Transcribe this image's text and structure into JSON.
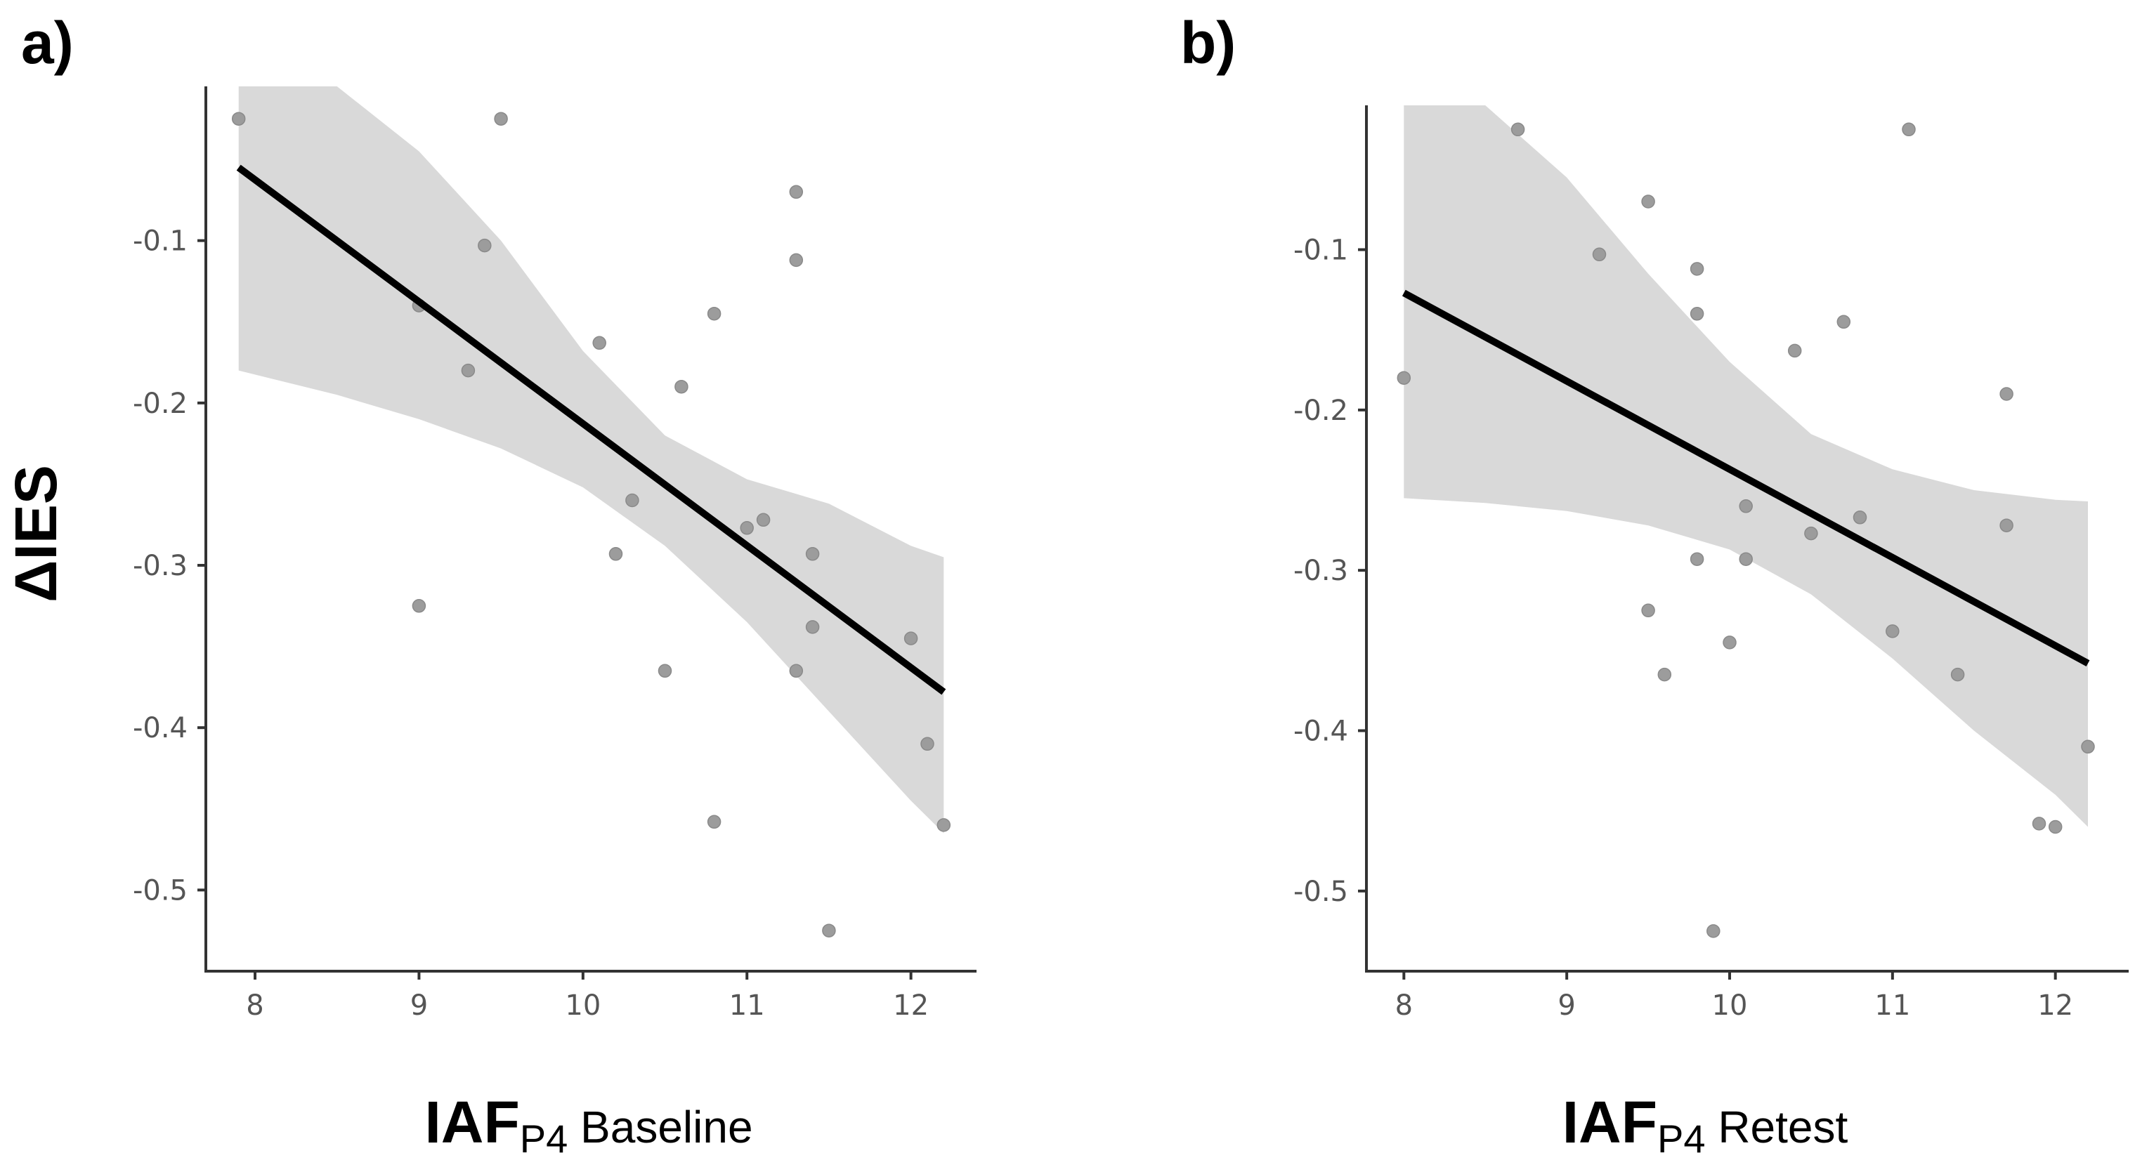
{
  "figure": {
    "ylabel": "ΔIES"
  },
  "chart_data": [
    {
      "type": "scatter",
      "panel_label": "a)",
      "xlabel": {
        "main": "IAF",
        "subscript": "P4",
        "rest": " Baseline"
      },
      "ylabel": "ΔIES",
      "xlim": [
        7.7,
        12.4
      ],
      "ylim": [
        -0.55,
        -0.005
      ],
      "xticks": [
        8,
        9,
        10,
        11,
        12
      ],
      "yticks": [
        -0.1,
        -0.2,
        -0.3,
        -0.4,
        -0.5
      ],
      "xtick_labels": [
        "8",
        "9",
        "10",
        "11",
        "12"
      ],
      "ytick_labels": [
        "-0.1",
        "-0.2",
        -0.3,
        "-0.4",
        "-0.5"
      ],
      "points": [
        {
          "x": 7.9,
          "y": -0.025
        },
        {
          "x": 9.0,
          "y": -0.14
        },
        {
          "x": 9.0,
          "y": -0.325
        },
        {
          "x": 9.3,
          "y": -0.18
        },
        {
          "x": 9.4,
          "y": -0.103
        },
        {
          "x": 9.5,
          "y": -0.025
        },
        {
          "x": 10.1,
          "y": -0.163
        },
        {
          "x": 10.2,
          "y": -0.293
        },
        {
          "x": 10.3,
          "y": -0.26
        },
        {
          "x": 10.5,
          "y": -0.365
        },
        {
          "x": 10.6,
          "y": -0.19
        },
        {
          "x": 10.8,
          "y": -0.145
        },
        {
          "x": 10.8,
          "y": -0.458
        },
        {
          "x": 11.0,
          "y": -0.277
        },
        {
          "x": 11.1,
          "y": -0.272
        },
        {
          "x": 11.3,
          "y": -0.07
        },
        {
          "x": 11.3,
          "y": -0.112
        },
        {
          "x": 11.3,
          "y": -0.365
        },
        {
          "x": 11.4,
          "y": -0.293
        },
        {
          "x": 11.4,
          "y": -0.338
        },
        {
          "x": 11.5,
          "y": -0.525
        },
        {
          "x": 12.0,
          "y": -0.345
        },
        {
          "x": 12.1,
          "y": -0.41
        },
        {
          "x": 12.2,
          "y": -0.46
        }
      ],
      "fit_line": [
        {
          "x": 7.9,
          "y": -0.055
        },
        {
          "x": 12.2,
          "y": -0.378
        }
      ],
      "confidence_band": {
        "x": [
          7.9,
          8.5,
          9.0,
          9.5,
          10.0,
          10.5,
          11.0,
          11.5,
          12.0,
          12.2
        ],
        "upper": [
          -0.005,
          -0.005,
          -0.045,
          -0.1,
          -0.168,
          -0.22,
          -0.247,
          -0.262,
          -0.288,
          -0.295
        ],
        "lower": [
          -0.18,
          -0.195,
          -0.21,
          -0.228,
          -0.252,
          -0.288,
          -0.335,
          -0.39,
          -0.445,
          -0.465
        ]
      }
    },
    {
      "type": "scatter",
      "panel_label": "b)",
      "xlabel": {
        "main": "IAF",
        "subscript": "P4",
        "rest": " Retest"
      },
      "ylabel": "",
      "xlim": [
        7.77,
        12.45
      ],
      "ylim": [
        -0.55,
        -0.01
      ],
      "xticks": [
        8,
        9,
        10,
        11,
        12
      ],
      "yticks": [
        -0.1,
        -0.2,
        -0.3,
        -0.4,
        -0.5
      ],
      "xtick_labels": [
        "8",
        "9",
        "10",
        "11",
        "12"
      ],
      "ytick_labels": [
        "-0.1",
        "-0.2",
        "-0.3",
        "-0.4",
        "-0.5"
      ],
      "points": [
        {
          "x": 8.0,
          "y": -0.18
        },
        {
          "x": 8.7,
          "y": -0.025
        },
        {
          "x": 9.2,
          "y": -0.103
        },
        {
          "x": 9.5,
          "y": -0.07
        },
        {
          "x": 9.5,
          "y": -0.325
        },
        {
          "x": 9.6,
          "y": -0.365
        },
        {
          "x": 9.8,
          "y": -0.112
        },
        {
          "x": 9.8,
          "y": -0.14
        },
        {
          "x": 9.8,
          "y": -0.293
        },
        {
          "x": 9.9,
          "y": -0.525
        },
        {
          "x": 10.0,
          "y": -0.345
        },
        {
          "x": 10.1,
          "y": -0.26
        },
        {
          "x": 10.1,
          "y": -0.293
        },
        {
          "x": 10.4,
          "y": -0.163
        },
        {
          "x": 10.5,
          "y": -0.277
        },
        {
          "x": 10.7,
          "y": -0.145
        },
        {
          "x": 10.8,
          "y": -0.267
        },
        {
          "x": 11.0,
          "y": -0.338
        },
        {
          "x": 11.1,
          "y": -0.025
        },
        {
          "x": 11.4,
          "y": -0.365
        },
        {
          "x": 11.7,
          "y": -0.19
        },
        {
          "x": 11.7,
          "y": -0.272
        },
        {
          "x": 11.9,
          "y": -0.458
        },
        {
          "x": 12.0,
          "y": -0.46
        },
        {
          "x": 12.2,
          "y": -0.41
        }
      ],
      "fit_line": [
        {
          "x": 8.0,
          "y": -0.127
        },
        {
          "x": 12.2,
          "y": -0.358
        }
      ],
      "confidence_band": {
        "x": [
          8.0,
          8.5,
          9.0,
          9.5,
          10.0,
          10.5,
          11.0,
          11.5,
          12.0,
          12.2
        ],
        "upper": [
          -0.01,
          -0.01,
          -0.055,
          -0.115,
          -0.17,
          -0.215,
          -0.237,
          -0.25,
          -0.256,
          -0.257
        ],
        "lower": [
          -0.255,
          -0.258,
          -0.263,
          -0.272,
          -0.287,
          -0.315,
          -0.355,
          -0.4,
          -0.44,
          -0.46
        ]
      }
    }
  ]
}
